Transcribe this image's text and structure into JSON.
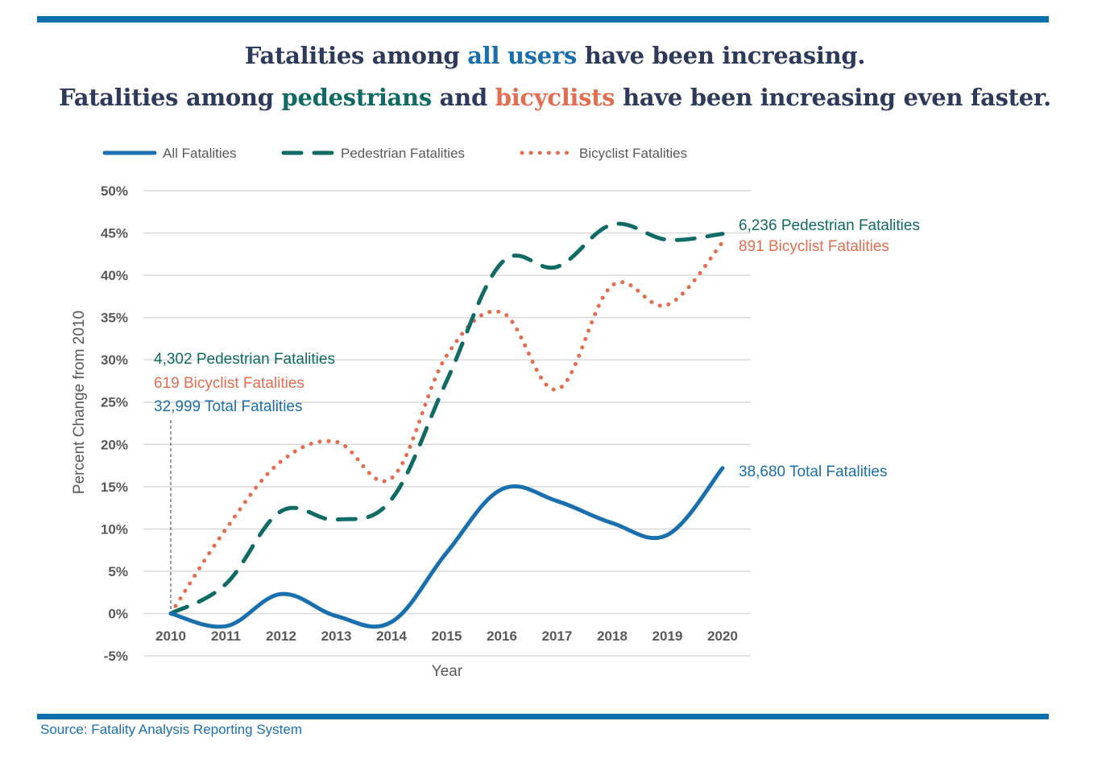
{
  "headline": {
    "line1": [
      {
        "text": "Fatalities among ",
        "style": "plain"
      },
      {
        "text": "all users",
        "style": "blue"
      },
      {
        "text": " have been increasing.",
        "style": "plain"
      }
    ],
    "line2": [
      {
        "text": "Fatalities among ",
        "style": "plain"
      },
      {
        "text": "pedestrians",
        "style": "teal"
      },
      {
        "text": " and ",
        "style": "plain"
      },
      {
        "text": "bicyclists",
        "style": "orange"
      },
      {
        "text": " have been increasing even faster.",
        "style": "plain"
      }
    ]
  },
  "source": "Source: Fatality Analysis Reporting System",
  "colors": {
    "rule": "#0b6fae",
    "headline": "#2d3a5c",
    "all": "#1a6fae",
    "pedestrian": "#0f6b63",
    "bicyclist": "#e46c4f",
    "grid": "#d9d9d9",
    "axis_text": "#595959"
  },
  "chart_data": {
    "type": "line",
    "title": "",
    "xlabel": "Year",
    "ylabel": "Percent Change from 2010",
    "x": [
      2010,
      2011,
      2012,
      2013,
      2014,
      2015,
      2016,
      2017,
      2018,
      2019,
      2020
    ],
    "x_tick_labels": [
      "2010",
      "2011",
      "2012",
      "2013",
      "2014",
      "2015",
      "2016",
      "2017",
      "2018",
      "2019",
      "2020"
    ],
    "ylim": [
      -5,
      50
    ],
    "y_ticks": [
      -5,
      0,
      5,
      10,
      15,
      20,
      25,
      30,
      35,
      40,
      45,
      50
    ],
    "y_tick_labels": [
      "-5%",
      "0%",
      "5%",
      "10%",
      "15%",
      "20%",
      "25%",
      "30%",
      "35%",
      "40%",
      "45%",
      "50%"
    ],
    "grid": true,
    "legend_position": "top",
    "series": [
      {
        "name": "All Fatalities",
        "key": "all",
        "line_style": "solid",
        "values": [
          0,
          -1.5,
          2.3,
          -0.3,
          -1.0,
          7.2,
          14.7,
          13.3,
          10.7,
          9.3,
          17.2
        ]
      },
      {
        "name": "Pedestrian Fatalities",
        "key": "pedestrian",
        "line_style": "dashed",
        "values": [
          0,
          3.5,
          12.1,
          11.1,
          13.5,
          27.5,
          41.5,
          41.0,
          46.0,
          44.2,
          44.9
        ]
      },
      {
        "name": "Bicyclist Fatalities",
        "key": "bicyclist",
        "line_style": "dotted",
        "values": [
          0,
          10.0,
          18.0,
          20.3,
          16.0,
          30.5,
          35.6,
          26.5,
          38.8,
          36.5,
          43.9
        ]
      }
    ],
    "annotations": {
      "start": [
        {
          "text": "4,302 Pedestrian Fatalities",
          "key": "pedestrian"
        },
        {
          "text": "619 Bicyclist Fatalities",
          "key": "bicyclist"
        },
        {
          "text": "32,999 Total Fatalities",
          "key": "all"
        }
      ],
      "end": [
        {
          "text": "6,236 Pedestrian Fatalities",
          "key": "pedestrian"
        },
        {
          "text": "891 Bicyclist Fatalities",
          "key": "bicyclist"
        },
        {
          "text": "38,680 Total Fatalities",
          "key": "all"
        }
      ]
    }
  }
}
